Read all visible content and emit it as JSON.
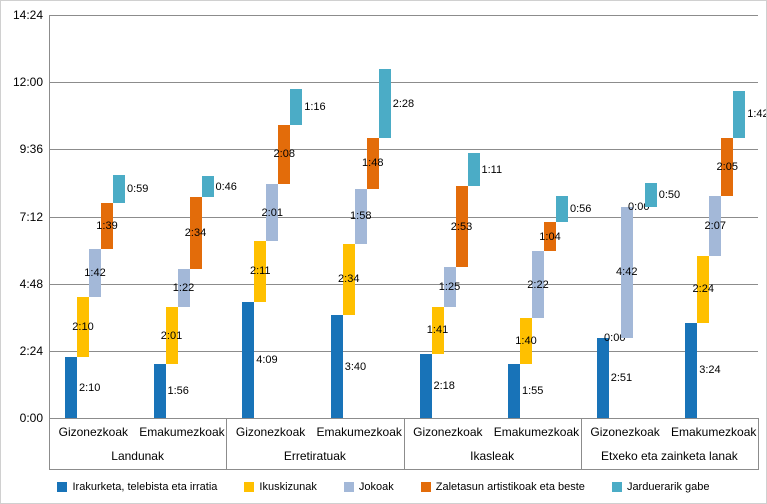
{
  "chart_data": {
    "type": "bar",
    "variant": "cascading-stacked-columns",
    "title": "",
    "xlabel": "",
    "ylabel": "",
    "ylim_minutes": [
      0,
      864
    ],
    "grid": "horizontal",
    "legend_position": "bottom",
    "y_axis": {
      "max_minutes": 864,
      "ticks": [
        {
          "label": "0:00",
          "minutes": 0
        },
        {
          "label": "2:24",
          "minutes": 144
        },
        {
          "label": "4:48",
          "minutes": 288
        },
        {
          "label": "7:12",
          "minutes": 432
        },
        {
          "label": "9:36",
          "minutes": 576
        },
        {
          "label": "12:00",
          "minutes": 720
        },
        {
          "label": "14:24",
          "minutes": 864
        }
      ]
    },
    "series": [
      {
        "name": "Irakurketa, telebista eta irratia",
        "color": "#1873B8"
      },
      {
        "name": "Ikuskizunak",
        "color": "#FFC000"
      },
      {
        "name": "Jokoak",
        "color": "#A3B8D8"
      },
      {
        "name": "Zaletasun artistikoak eta beste",
        "color": "#E36C0A"
      },
      {
        "name": "Jarduerarik gabe",
        "color": "#4BACC6"
      }
    ],
    "groups": [
      {
        "label": "Landunak",
        "columns": [
          {
            "label": "Gizonezkoak",
            "values_minutes": [
              130,
              130,
              102,
              99,
              59
            ],
            "value_labels": [
              "2:10",
              "2:10",
              "1:42",
              "1:39",
              "0:59"
            ]
          },
          {
            "label": "Emakumezkoak",
            "values_minutes": [
              116,
              121,
              82,
              154,
              46
            ],
            "value_labels": [
              "1:56",
              "2:01",
              "1:22",
              "2:34",
              "0:46"
            ]
          }
        ]
      },
      {
        "label": "Erretiratuak",
        "columns": [
          {
            "label": "Gizonezkoak",
            "values_minutes": [
              249,
              131,
              121,
              128,
              76
            ],
            "value_labels": [
              "4:09",
              "2:11",
              "2:01",
              "2:08",
              "1:16"
            ]
          },
          {
            "label": "Emakumezkoak",
            "values_minutes": [
              220,
              154,
              118,
              108,
              148
            ],
            "value_labels": [
              "3:40",
              "2:34",
              "1:58",
              "1:48",
              "2:28"
            ]
          }
        ]
      },
      {
        "label": "Ikasleak",
        "columns": [
          {
            "label": "Gizonezkoak",
            "values_minutes": [
              138,
              101,
              85,
              173,
              71
            ],
            "value_labels": [
              "2:18",
              "1:41",
              "1:25",
              "2:53",
              "1:11"
            ]
          },
          {
            "label": "Emakumezkoak",
            "values_minutes": [
              115,
              100,
              142,
              64,
              56
            ],
            "value_labels": [
              "1:55",
              "1:40",
              "2:22",
              "1:04",
              "0:56"
            ]
          }
        ]
      },
      {
        "label": "Etxeko eta zainketa lanak",
        "columns": [
          {
            "label": "Gizonezkoak",
            "values_minutes": [
              171,
              0,
              282,
              0,
              50
            ],
            "value_labels": [
              "2:51",
              "0:00",
              "4:42",
              "0:00",
              "0:50"
            ]
          },
          {
            "label": "Emakumezkoak",
            "values_minutes": [
              204,
              144,
              127,
              125,
              102
            ],
            "value_labels": [
              "3:24",
              "2:24",
              "2:07",
              "2:05",
              "1:42"
            ]
          }
        ]
      }
    ],
    "colors": {
      "gridline": "#8c8c8c",
      "text": "#000000",
      "background": "#ffffff"
    }
  }
}
